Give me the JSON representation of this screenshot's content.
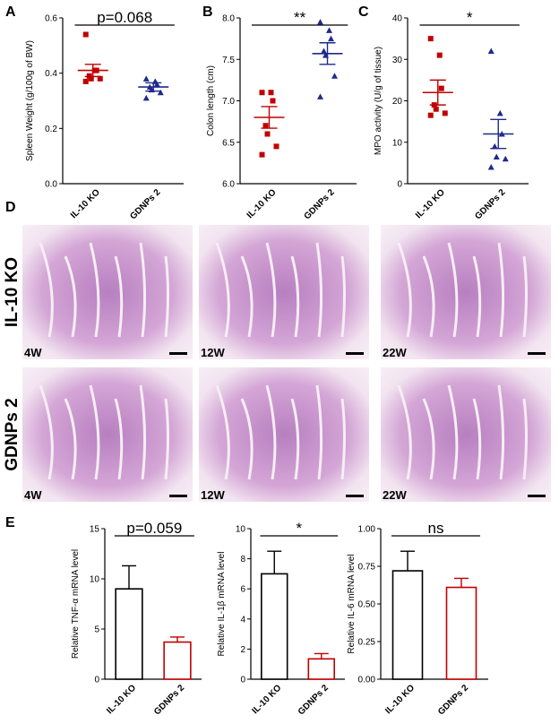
{
  "chart_data": [
    {
      "type": "dot",
      "panel_label": "A",
      "y_label": "Spleen Weight (g/100g of BW)",
      "annotation": "p=0.068",
      "categories": [
        "IL-10 KO",
        "GDNPs 2"
      ],
      "ylim": [
        0,
        0.6
      ],
      "yticks": [
        {
          "value": 0,
          "label": "0.0"
        },
        0.2,
        0.4,
        0.6
      ],
      "groups": [
        {
          "color": "#c00000",
          "marker": "square",
          "values": [
            0.54,
            0.41,
            0.41,
            0.39,
            0.38,
            0.38,
            0.37
          ],
          "mean": 0.41,
          "sem": 0.022
        },
        {
          "color": "#1f2a8c",
          "marker": "triangle",
          "values": [
            0.38,
            0.37,
            0.36,
            0.35,
            0.34,
            0.33,
            0.31
          ],
          "mean": 0.35,
          "sem": 0.015
        }
      ]
    },
    {
      "type": "dot",
      "panel_label": "B",
      "y_label": "Colon length (cm)",
      "annotation": "**",
      "categories": [
        "IL-10 KO",
        "GDNPs 2"
      ],
      "ylim": [
        6,
        8
      ],
      "yticks": [
        {
          "value": 6,
          "label": "6.0"
        },
        6.5,
        {
          "value": 7,
          "label": "7.0"
        },
        7.5,
        {
          "value": 8,
          "label": "8.0"
        }
      ],
      "groups": [
        {
          "color": "#c00000",
          "marker": "square",
          "values": [
            7.1,
            7.1,
            7.0,
            6.7,
            6.6,
            6.45,
            6.35
          ],
          "mean": 6.8,
          "sem": 0.13
        },
        {
          "color": "#1f2a8c",
          "marker": "triangle",
          "values": [
            7.95,
            7.85,
            7.75,
            7.6,
            7.55,
            7.3,
            7.05
          ],
          "mean": 7.57,
          "sem": 0.13
        }
      ]
    },
    {
      "type": "dot",
      "panel_label": "C",
      "y_label": "MPO activity (U/g of tissue)",
      "annotation": "*",
      "categories": [
        "IL-10 KO",
        "GDNPs 2"
      ],
      "ylim": [
        0,
        40
      ],
      "yticks": [
        0,
        10,
        20,
        30,
        40
      ],
      "groups": [
        {
          "color": "#c00000",
          "marker": "square",
          "values": [
            35,
            31,
            23,
            19,
            18,
            17,
            16.5
          ],
          "mean": 22,
          "sem": 3
        },
        {
          "color": "#1f2a8c",
          "marker": "triangle",
          "values": [
            32,
            17,
            12,
            9,
            6.5,
            6,
            4
          ],
          "mean": 12,
          "sem": 3.5
        }
      ]
    },
    {
      "type": "bar",
      "panel_label": "E",
      "y_label": "Relative TNF-α mRNA level",
      "annotation": "p=0.059",
      "categories": [
        "IL-10 KO",
        "GDNPs 2"
      ],
      "values": [
        9.0,
        3.7
      ],
      "errors": [
        2.3,
        0.5
      ],
      "colors": [
        "#000000",
        "#c00000"
      ],
      "ylim": [
        0,
        15
      ],
      "yticks": [
        0,
        5,
        10,
        15
      ]
    },
    {
      "type": "bar",
      "y_label": "Relative IL-1β mRNA level",
      "annotation": "*",
      "categories": [
        "IL-10 KO",
        "GDNPs 2"
      ],
      "values": [
        7.0,
        1.35
      ],
      "errors": [
        1.5,
        0.35
      ],
      "colors": [
        "#000000",
        "#c00000"
      ],
      "ylim": [
        0,
        10
      ],
      "yticks": [
        0,
        2,
        4,
        6,
        8,
        10
      ]
    },
    {
      "type": "bar",
      "y_label": "Relative IL-6 mRNA level",
      "annotation": "ns",
      "categories": [
        "IL-10 KO",
        "GDNPs 2"
      ],
      "values": [
        0.72,
        0.61
      ],
      "errors": [
        0.13,
        0.06
      ],
      "colors": [
        "#000000",
        "#c00000"
      ],
      "ylim": [
        0,
        1
      ],
      "yticks": [
        {
          "value": 0,
          "label": "0.00"
        },
        0.25,
        {
          "value": 0.5,
          "label": "0.50"
        },
        0.75,
        {
          "value": 1,
          "label": "1.00"
        }
      ]
    }
  ],
  "histology": {
    "panel_label": "D",
    "rows": [
      "IL-10 KO",
      "GDNPs 2"
    ],
    "times": [
      "4W",
      "12W",
      "22W"
    ]
  }
}
